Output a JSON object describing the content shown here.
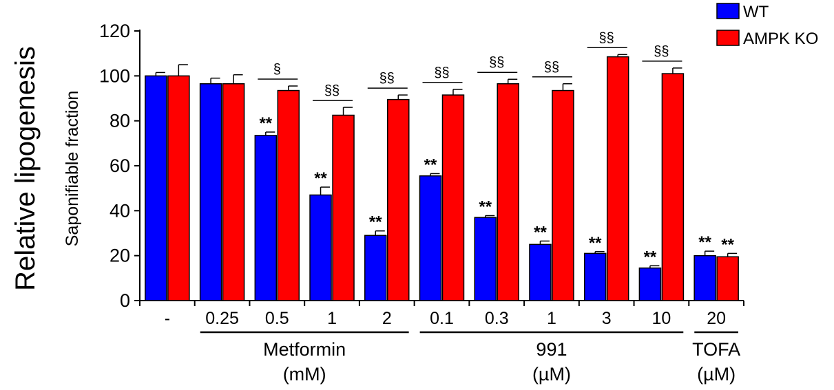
{
  "chart_data": {
    "type": "bar",
    "ylabel_main": "Relative lipogenesis",
    "ylabel": "Saponifiable fraction",
    "ylim": [
      0,
      120
    ],
    "yticks": [
      0,
      20,
      40,
      60,
      80,
      100,
      120
    ],
    "categories": [
      "-",
      "0.25",
      "0.5",
      "1",
      "2",
      "0.1",
      "0.3",
      "1",
      "3",
      "10",
      "20"
    ],
    "series": [
      {
        "name": "WT",
        "color": "#0000ff",
        "values": [
          100,
          96.5,
          73.5,
          47,
          29,
          55.5,
          37,
          25,
          21,
          14.5,
          20
        ],
        "errors": [
          1.5,
          2.5,
          1.5,
          3.5,
          2,
          1,
          0.8,
          1.5,
          0.8,
          1,
          2
        ]
      },
      {
        "name": "AMPK KO",
        "color": "#ff0000",
        "values": [
          100,
          96.5,
          93.5,
          82.5,
          89.5,
          91.5,
          96.5,
          93.5,
          108.5,
          101,
          19.5
        ]
      }
    ],
    "ko_errors": [
      5,
      4,
      2,
      3.5,
      2,
      2.5,
      2,
      3,
      1,
      2.5,
      1.5
    ],
    "wt_marks": [
      "",
      "",
      "**",
      "**",
      "**",
      "**",
      "**",
      "**",
      "**",
      "**",
      "**"
    ],
    "ko_marks": [
      "",
      "",
      "",
      "",
      "",
      "",
      "",
      "",
      "",
      "",
      "**"
    ],
    "pair_marks": [
      "",
      "",
      "§",
      "§§",
      "§§",
      "§§",
      "§§",
      "§§",
      "§§",
      "§§",
      ""
    ],
    "groups": [
      {
        "label": "Metformin",
        "unit": "(mM)",
        "from": 1,
        "to": 4
      },
      {
        "label": "991",
        "unit": "(µM)",
        "from": 5,
        "to": 9
      },
      {
        "label": "TOFA",
        "unit": "(µM)",
        "from": 10,
        "to": 10
      }
    ],
    "legend_position": "top-right"
  }
}
